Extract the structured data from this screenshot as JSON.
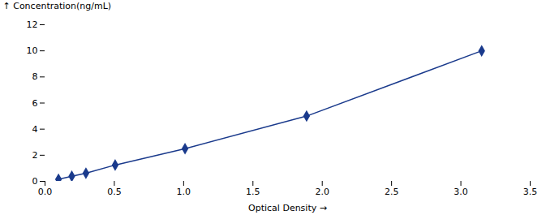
{
  "chart_data": {
    "type": "line",
    "x": [
      0.097,
      0.193,
      0.295,
      0.506,
      1.01,
      1.887,
      3.15
    ],
    "values": [
      0.156,
      0.39,
      0.625,
      1.25,
      2.5,
      5.0,
      10.0
    ],
    "color": "#1A3A8C",
    "marker": "diamond",
    "xlabel": "Optical Density",
    "ylabel": "Concentration(ng/mL)",
    "xlim": [
      0,
      3.5
    ],
    "ylim": [
      0,
      12
    ],
    "xticks": [
      {
        "value": 0,
        "label": "0.0"
      },
      0.5,
      {
        "value": 1.0,
        "label": "1.0"
      },
      1.5,
      {
        "value": 2.0,
        "label": "2.0"
      },
      2.5,
      {
        "value": 3.0,
        "label": "3.0"
      },
      3.5
    ],
    "yticks": [
      0,
      2,
      4,
      6,
      8,
      10,
      12
    ]
  }
}
